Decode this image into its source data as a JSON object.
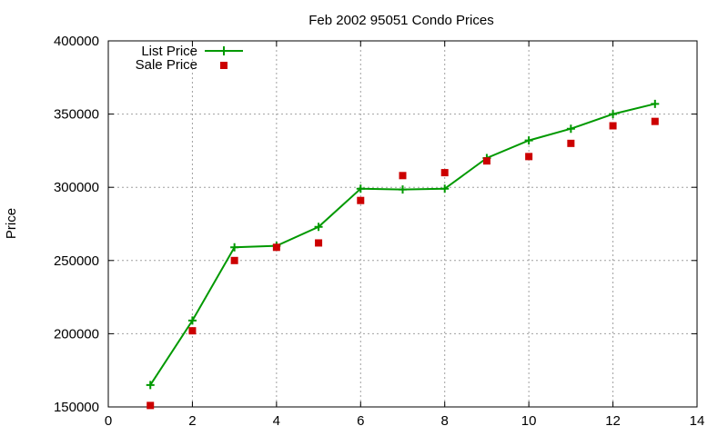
{
  "chart_data": {
    "type": "line",
    "title": "Feb 2002 95051 Condo Prices",
    "xlabel": "",
    "ylabel": "Price",
    "xlim": [
      0,
      14
    ],
    "ylim": [
      150000,
      400000
    ],
    "x_ticks": [
      0,
      2,
      4,
      6,
      8,
      10,
      12,
      14
    ],
    "y_ticks": [
      150000,
      200000,
      250000,
      300000,
      350000,
      400000
    ],
    "grid": true,
    "legend_position": "top-left",
    "series": [
      {
        "name": "List Price",
        "style": "line-with-plus-markers",
        "color": "#009900",
        "x": [
          1,
          2,
          3,
          4,
          5,
          6,
          7,
          8,
          9,
          10,
          11,
          12,
          13
        ],
        "values": [
          165000,
          209000,
          259000,
          260000,
          273000,
          299000,
          298500,
          299000,
          320000,
          332000,
          340000,
          350000,
          357000
        ]
      },
      {
        "name": "Sale Price",
        "style": "square-markers",
        "color": "#cc0000",
        "x": [
          1,
          2,
          3,
          4,
          5,
          6,
          7,
          8,
          9,
          10,
          11,
          12,
          13
        ],
        "values": [
          151000,
          202000,
          250000,
          259000,
          262000,
          291000,
          308000,
          310000,
          318000,
          321000,
          330000,
          342000,
          345000
        ]
      }
    ]
  }
}
